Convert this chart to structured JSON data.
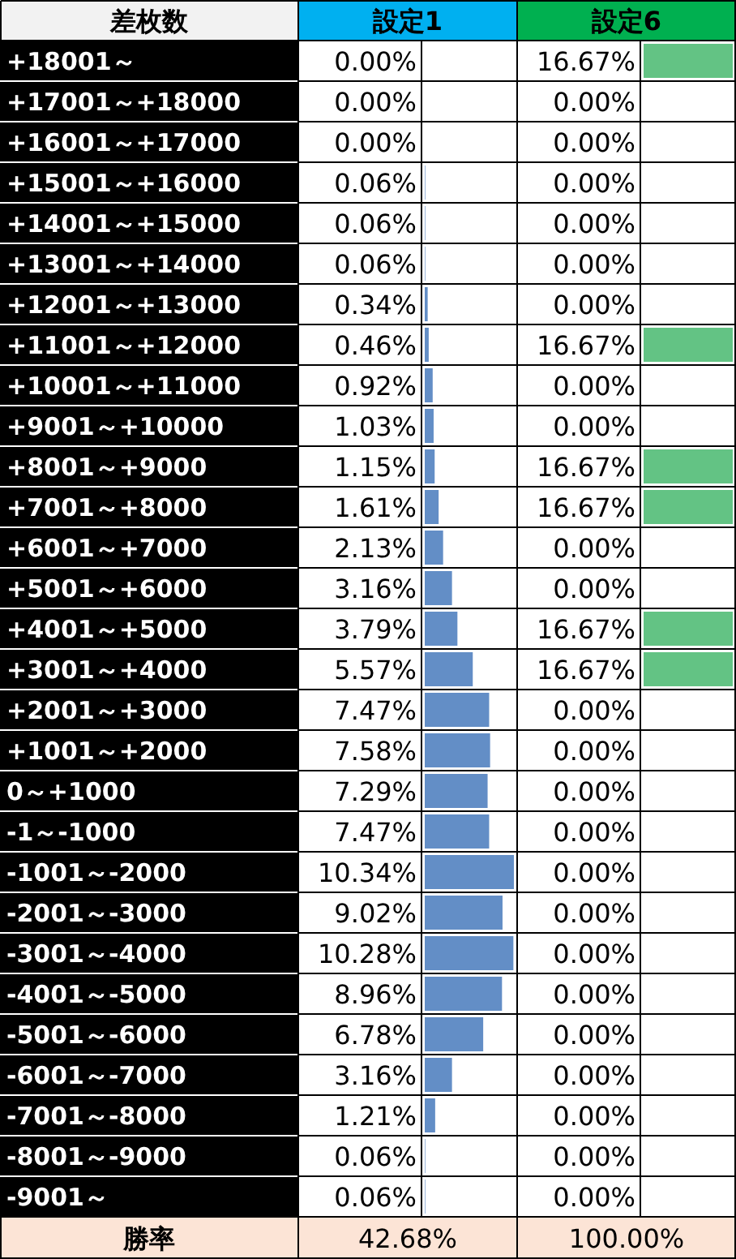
{
  "chart_data": [
    {
      "type": "bar",
      "orientation": "horizontal",
      "title": "設定1",
      "ylabel": "差枚数",
      "tick_labels": "y",
      "color": "#638ec6",
      "grid": true,
      "categories": [
        "+18001～",
        "+17001～+18000",
        "+16001～+17000",
        "+15001～+16000",
        "+14001～+15000",
        "+13001～+14000",
        "+12001～+13000",
        "+11001～+12000",
        "+10001～+11000",
        "+9001～+10000",
        "+8001～+9000",
        "+7001～+8000",
        "+6001～+7000",
        "+5001～+6000",
        "+4001～+5000",
        "+3001～+4000",
        "+2001～+3000",
        "+1001～+2000",
        "0～+1000",
        "-1～-1000",
        "-1001～-2000",
        "-2001～-3000",
        "-3001～-4000",
        "-4001～-5000",
        "-5001～-6000",
        "-6001～-7000",
        "-7001～-8000",
        "-8001～-9000",
        "-9001～"
      ],
      "values": [
        0,
        0,
        0,
        0.06,
        0.06,
        0.06,
        0.34,
        0.46,
        0.92,
        1.03,
        1.15,
        1.61,
        2.13,
        3.16,
        3.79,
        5.57,
        7.47,
        7.58,
        7.29,
        7.47,
        10.34,
        9.02,
        10.28,
        8.96,
        6.78,
        3.16,
        1.21,
        0.06,
        0.06
      ],
      "value_labels": [
        "0.00%",
        "0.00%",
        "0.00%",
        "0.06%",
        "0.06%",
        "0.06%",
        "0.34%",
        "0.46%",
        "0.92%",
        "1.03%",
        "1.15%",
        "1.61%",
        "2.13%",
        "3.16%",
        "3.79%",
        "5.57%",
        "7.47%",
        "7.58%",
        "7.29%",
        "7.47%",
        "10.34%",
        "9.02%",
        "10.28%",
        "8.96%",
        "6.78%",
        "3.16%",
        "1.21%",
        "0.06%",
        "0.06%"
      ],
      "annotations": [
        "勝率",
        "42.68%"
      ]
    },
    {
      "type": "bar",
      "orientation": "horizontal",
      "title": "設定6",
      "tick_labels": false,
      "color": "#63c384",
      "grid": true,
      "categories": [
        null,
        null,
        null,
        null,
        null,
        null,
        null,
        null,
        null,
        null,
        null,
        null,
        null,
        null,
        null,
        null,
        null,
        null,
        null,
        null,
        null,
        null,
        null,
        null,
        null,
        null,
        null,
        null,
        null
      ],
      "values": [
        16.67,
        0,
        0,
        0,
        0,
        0,
        0,
        16.67,
        0,
        0,
        16.67,
        16.67,
        0,
        0,
        16.67,
        16.67,
        0,
        0,
        0,
        0,
        0,
        0,
        0,
        0,
        0,
        0,
        0,
        0,
        0
      ],
      "value_labels": [
        "16.67%",
        "0.00%",
        "0.00%",
        "0.00%",
        "0.00%",
        "0.00%",
        "0.00%",
        "16.67%",
        "0.00%",
        "0.00%",
        "16.67%",
        "16.67%",
        "0.00%",
        "0.00%",
        "16.67%",
        "16.67%",
        "0.00%",
        "0.00%",
        "0.00%",
        "0.00%",
        "0.00%",
        "0.00%",
        "0.00%",
        "0.00%",
        "0.00%",
        "0.00%",
        "0.00%",
        "0.00%",
        "0.00%"
      ],
      "annotations": [
        "100.00%"
      ]
    }
  ]
}
